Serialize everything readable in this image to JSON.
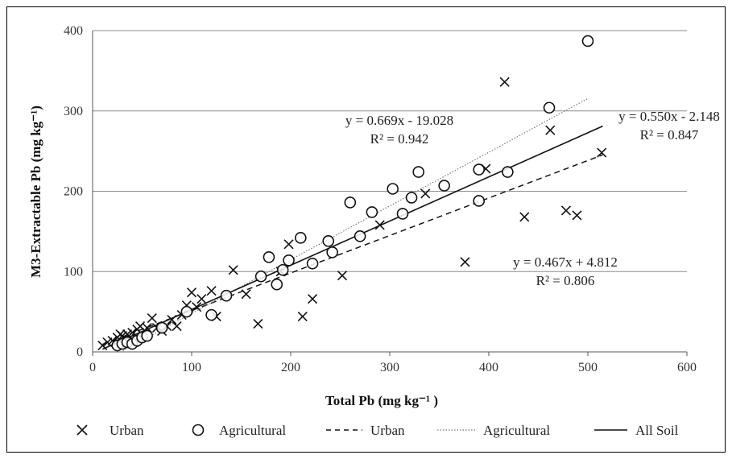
{
  "chart_data": {
    "type": "scatter",
    "title": "",
    "xlabel": "Total Pb (mg kg⁻¹ )",
    "ylabel": "M3-Extractable Pb (mg kg⁻¹)",
    "xlim": [
      0,
      600
    ],
    "ylim": [
      0,
      400
    ],
    "x_ticks": [
      "0",
      "100",
      "200",
      "300",
      "400",
      "500",
      "600"
    ],
    "y_ticks": [
      "0",
      "100",
      "200",
      "300",
      "400"
    ],
    "grid": "horizontal",
    "legend_position": "bottom",
    "series": [
      {
        "name": "Urban",
        "marker": "x",
        "points": [
          [
            10,
            8
          ],
          [
            15,
            12
          ],
          [
            20,
            14
          ],
          [
            25,
            18
          ],
          [
            28,
            22
          ],
          [
            30,
            20
          ],
          [
            32,
            16
          ],
          [
            35,
            22
          ],
          [
            38,
            18
          ],
          [
            40,
            24
          ],
          [
            42,
            12
          ],
          [
            45,
            28
          ],
          [
            48,
            32
          ],
          [
            50,
            22
          ],
          [
            55,
            30
          ],
          [
            60,
            42
          ],
          [
            65,
            30
          ],
          [
            70,
            26
          ],
          [
            75,
            32
          ],
          [
            80,
            40
          ],
          [
            85,
            32
          ],
          [
            90,
            46
          ],
          [
            95,
            58
          ],
          [
            100,
            74
          ],
          [
            105,
            56
          ],
          [
            110,
            66
          ],
          [
            120,
            76
          ],
          [
            125,
            44
          ],
          [
            142,
            102
          ],
          [
            155,
            72
          ],
          [
            167,
            35
          ],
          [
            190,
            100
          ],
          [
            198,
            134
          ],
          [
            212,
            44
          ],
          [
            222,
            66
          ],
          [
            252,
            95
          ],
          [
            290,
            158
          ],
          [
            336,
            197
          ],
          [
            376,
            112
          ],
          [
            397,
            228
          ],
          [
            416,
            336
          ],
          [
            436,
            168
          ],
          [
            462,
            276
          ],
          [
            478,
            176
          ],
          [
            489,
            170
          ],
          [
            514,
            248
          ]
        ]
      },
      {
        "name": "Agricultural",
        "marker": "o",
        "points": [
          [
            25,
            8
          ],
          [
            30,
            10
          ],
          [
            35,
            12
          ],
          [
            40,
            10
          ],
          [
            45,
            14
          ],
          [
            50,
            18
          ],
          [
            55,
            20
          ],
          [
            70,
            30
          ],
          [
            95,
            50
          ],
          [
            120,
            46
          ],
          [
            135,
            70
          ],
          [
            170,
            94
          ],
          [
            178,
            118
          ],
          [
            186,
            84
          ],
          [
            192,
            102
          ],
          [
            198,
            114
          ],
          [
            210,
            142
          ],
          [
            222,
            110
          ],
          [
            238,
            138
          ],
          [
            242,
            124
          ],
          [
            260,
            186
          ],
          [
            270,
            144
          ],
          [
            282,
            174
          ],
          [
            303,
            203
          ],
          [
            313,
            172
          ],
          [
            322,
            192
          ],
          [
            329,
            224
          ],
          [
            355,
            207
          ],
          [
            390,
            188
          ],
          [
            390,
            227
          ],
          [
            419,
            224
          ],
          [
            461,
            304
          ],
          [
            500,
            387
          ]
        ]
      },
      {
        "name": "Urban",
        "style": "dashed",
        "slope": 0.467,
        "intercept": 4.812,
        "x_range": [
          10,
          515
        ]
      },
      {
        "name": "Agricultural",
        "style": "dotted",
        "slope": 0.669,
        "intercept": -19.028,
        "x_range": [
          28,
          500
        ]
      },
      {
        "name": "All Soil",
        "style": "solid",
        "slope": 0.55,
        "intercept": -2.148,
        "x_range": [
          10,
          515
        ]
      }
    ],
    "annotations": [
      {
        "line1": "y = 0.669x - 19.028",
        "line2": "R² = 0.942"
      },
      {
        "line1": "y = 0.550x - 2.148",
        "line2": "R² = 0.847"
      },
      {
        "line1": "y = 0.467x + 4.812",
        "line2": "R² = 0.806"
      }
    ],
    "legend": [
      "Urban",
      "Agricultural",
      "Urban",
      "Agricultural",
      "All Soil"
    ]
  }
}
